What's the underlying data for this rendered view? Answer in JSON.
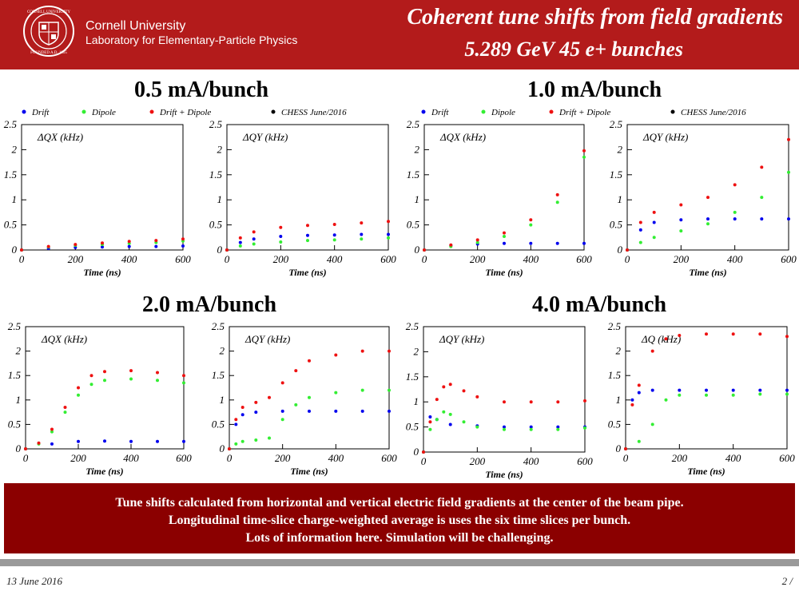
{
  "header": {
    "university": "Cornell University",
    "lab": "Laboratory for Elementary-Particle Physics",
    "title_line1": "Coherent tune shifts from field gradients",
    "title_line2": "5.289 GeV  45 e+ bunches"
  },
  "groups": [
    {
      "title": "0.5 mA/bunch"
    },
    {
      "title": "1.0 mA/bunch"
    },
    {
      "title": "2.0 mA/bunch"
    },
    {
      "title": "4.0 mA/bunch"
    }
  ],
  "legend": [
    {
      "label": "Drift",
      "color": "#0000ee"
    },
    {
      "label": "Dipole",
      "color": "#33ee33"
    },
    {
      "label": "Drift + Dipole",
      "color": "#ee1111"
    },
    {
      "label": "CHESS June/2016",
      "color": "#000000"
    }
  ],
  "colors": {
    "header_bg": "#b31b1b",
    "summary_bg": "#8b0000"
  },
  "chart_data": [
    {
      "type": "scatter",
      "group": "0.5 mA/bunch",
      "ylabel": "ΔQX (kHz)",
      "xlabel": "Time (ns)",
      "xlim": [
        0,
        600
      ],
      "ylim": [
        0,
        2.5
      ],
      "xticks": [
        0,
        200,
        400,
        600
      ],
      "yticks": [
        0,
        0.5,
        1,
        1.5,
        2,
        2.5
      ],
      "grid": false,
      "series": [
        {
          "name": "Drift",
          "x": [
            0,
            100,
            200,
            300,
            400,
            500,
            600
          ],
          "values": [
            0,
            0.03,
            0.05,
            0.06,
            0.07,
            0.07,
            0.08
          ]
        },
        {
          "name": "Dipole",
          "x": [
            0,
            100,
            200,
            300,
            400,
            500,
            600
          ],
          "values": [
            0,
            0.06,
            0.09,
            0.11,
            0.13,
            0.15,
            0.18
          ]
        },
        {
          "name": "Drift + Dipole",
          "x": [
            0,
            100,
            200,
            300,
            400,
            500,
            600
          ],
          "values": [
            0,
            0.07,
            0.11,
            0.14,
            0.17,
            0.19,
            0.22
          ]
        }
      ]
    },
    {
      "type": "scatter",
      "group": "0.5 mA/bunch",
      "ylabel": "ΔQY (kHz)",
      "xlabel": "Time (ns)",
      "xlim": [
        0,
        600
      ],
      "ylim": [
        0,
        2.5
      ],
      "xticks": [
        0,
        200,
        400,
        600
      ],
      "yticks": [
        0,
        0.5,
        1,
        1.5,
        2,
        2.5
      ],
      "grid": false,
      "series": [
        {
          "name": "Drift",
          "x": [
            0,
            50,
            100,
            200,
            300,
            400,
            500,
            600
          ],
          "values": [
            0,
            0.15,
            0.22,
            0.27,
            0.29,
            0.3,
            0.31,
            0.31
          ]
        },
        {
          "name": "Dipole",
          "x": [
            0,
            50,
            100,
            200,
            300,
            400,
            500,
            600
          ],
          "values": [
            0,
            0.08,
            0.12,
            0.16,
            0.19,
            0.2,
            0.22,
            0.24
          ]
        },
        {
          "name": "Drift + Dipole",
          "x": [
            0,
            50,
            100,
            200,
            300,
            400,
            500,
            600
          ],
          "values": [
            0,
            0.24,
            0.36,
            0.45,
            0.49,
            0.51,
            0.54,
            0.57
          ]
        }
      ]
    },
    {
      "type": "scatter",
      "group": "1.0 mA/bunch",
      "ylabel": "ΔQX (kHz)",
      "xlabel": "Time (ns)",
      "xlim": [
        0,
        600
      ],
      "ylim": [
        0,
        2.5
      ],
      "xticks": [
        0,
        200,
        400,
        600
      ],
      "yticks": [
        0,
        0.5,
        1,
        1.5,
        2,
        2.5
      ],
      "grid": false,
      "series": [
        {
          "name": "Drift",
          "x": [
            0,
            100,
            200,
            300,
            400,
            500,
            600
          ],
          "values": [
            0,
            0.09,
            0.12,
            0.13,
            0.13,
            0.13,
            0.13
          ]
        },
        {
          "name": "Dipole",
          "x": [
            0,
            100,
            200,
            300,
            400,
            500,
            600
          ],
          "values": [
            0,
            0.07,
            0.15,
            0.27,
            0.5,
            0.95,
            1.85
          ]
        },
        {
          "name": "Drift + Dipole",
          "x": [
            0,
            100,
            200,
            300,
            400,
            500,
            600
          ],
          "values": [
            0,
            0.1,
            0.2,
            0.34,
            0.6,
            1.1,
            1.98
          ]
        }
      ]
    },
    {
      "type": "scatter",
      "group": "1.0 mA/bunch",
      "ylabel": "ΔQY (kHz)",
      "xlabel": "Time (ns)",
      "xlim": [
        0,
        600
      ],
      "ylim": [
        0,
        2.5
      ],
      "xticks": [
        0,
        200,
        400,
        600
      ],
      "yticks": [
        0,
        0.5,
        1,
        1.5,
        2,
        2.5
      ],
      "grid": false,
      "series": [
        {
          "name": "Drift",
          "x": [
            0,
            50,
            100,
            200,
            300,
            400,
            500,
            600
          ],
          "values": [
            0,
            0.4,
            0.55,
            0.6,
            0.62,
            0.62,
            0.62,
            0.62
          ]
        },
        {
          "name": "Dipole",
          "x": [
            0,
            50,
            100,
            200,
            300,
            400,
            500,
            600
          ],
          "values": [
            0,
            0.15,
            0.25,
            0.38,
            0.52,
            0.75,
            1.05,
            1.55
          ]
        },
        {
          "name": "Drift + Dipole",
          "x": [
            0,
            50,
            100,
            200,
            300,
            400,
            500,
            600
          ],
          "values": [
            0,
            0.55,
            0.75,
            0.9,
            1.05,
            1.3,
            1.65,
            2.2
          ]
        }
      ]
    },
    {
      "type": "scatter",
      "group": "2.0 mA/bunch",
      "ylabel": "ΔQX (kHz)",
      "xlabel": "Time (ns)",
      "xlim": [
        0,
        600
      ],
      "ylim": [
        0,
        2.5
      ],
      "xticks": [
        0,
        200,
        400,
        600
      ],
      "yticks": [
        0,
        0.5,
        1,
        1.5,
        2,
        2.5
      ],
      "grid": false,
      "series": [
        {
          "name": "Drift",
          "x": [
            0,
            100,
            200,
            300,
            400,
            500,
            600
          ],
          "values": [
            0,
            0.1,
            0.15,
            0.16,
            0.15,
            0.15,
            0.15
          ]
        },
        {
          "name": "Dipole",
          "x": [
            0,
            50,
            100,
            150,
            200,
            250,
            300,
            400,
            500,
            600
          ],
          "values": [
            0,
            0.1,
            0.35,
            0.75,
            1.1,
            1.32,
            1.4,
            1.43,
            1.4,
            1.35
          ]
        },
        {
          "name": "Drift + Dipole",
          "x": [
            0,
            50,
            100,
            150,
            200,
            250,
            300,
            400,
            500,
            600
          ],
          "values": [
            0,
            0.12,
            0.4,
            0.85,
            1.25,
            1.5,
            1.58,
            1.6,
            1.56,
            1.5
          ]
        }
      ]
    },
    {
      "type": "scatter",
      "group": "2.0 mA/bunch",
      "ylabel": "ΔQY (kHz)",
      "xlabel": "Time (ns)",
      "xlim": [
        0,
        600
      ],
      "ylim": [
        0,
        2.5
      ],
      "xticks": [
        0,
        200,
        400,
        600
      ],
      "yticks": [
        0,
        0.5,
        1,
        1.5,
        2,
        2.5
      ],
      "grid": false,
      "series": [
        {
          "name": "Drift",
          "x": [
            0,
            25,
            50,
            100,
            200,
            300,
            400,
            500,
            600
          ],
          "values": [
            0,
            0.5,
            0.7,
            0.75,
            0.77,
            0.77,
            0.77,
            0.77,
            0.77
          ]
        },
        {
          "name": "Dipole",
          "x": [
            0,
            25,
            50,
            100,
            150,
            200,
            250,
            300,
            400,
            500,
            600
          ],
          "values": [
            0,
            0.1,
            0.15,
            0.18,
            0.22,
            0.6,
            0.9,
            1.05,
            1.15,
            1.2,
            1.2
          ]
        },
        {
          "name": "Drift + Dipole",
          "x": [
            0,
            25,
            50,
            100,
            150,
            200,
            250,
            300,
            400,
            500,
            600
          ],
          "values": [
            0,
            0.6,
            0.85,
            0.95,
            1.05,
            1.35,
            1.6,
            1.8,
            1.92,
            2.0,
            2.0
          ]
        }
      ]
    },
    {
      "type": "scatter",
      "group": "4.0 mA/bunch",
      "ylabel": "ΔQY (kHz)",
      "xlabel": "Time (ns)",
      "xlim": [
        0,
        600
      ],
      "ylim": [
        0,
        2.5
      ],
      "xticks": [
        0,
        200,
        400,
        600
      ],
      "yticks": [
        0,
        0.5,
        1,
        1.5,
        2,
        2.5
      ],
      "grid": false,
      "series": [
        {
          "name": "Drift",
          "x": [
            0,
            25,
            50,
            100,
            200,
            300,
            400,
            500,
            600
          ],
          "values": [
            0,
            0.7,
            0.65,
            0.55,
            0.52,
            0.5,
            0.5,
            0.5,
            0.5
          ]
        },
        {
          "name": "Dipole",
          "x": [
            0,
            25,
            50,
            75,
            100,
            150,
            200,
            300,
            400,
            500,
            600
          ],
          "values": [
            0,
            0.45,
            0.65,
            0.8,
            0.75,
            0.6,
            0.5,
            0.45,
            0.45,
            0.45,
            0.48
          ]
        },
        {
          "name": "Drift + Dipole",
          "x": [
            0,
            25,
            50,
            75,
            100,
            150,
            200,
            300,
            400,
            500,
            600
          ],
          "values": [
            0,
            0.6,
            1.05,
            1.3,
            1.35,
            1.22,
            1.1,
            1.0,
            1.0,
            1.0,
            1.02
          ]
        }
      ]
    },
    {
      "type": "scatter",
      "group": "4.0 mA/bunch",
      "ylabel": "ΔQ (kHz)",
      "xlabel": "Time (ns)",
      "xlim": [
        0,
        600
      ],
      "ylim": [
        0,
        2.5
      ],
      "xticks": [
        0,
        200,
        400,
        600
      ],
      "yticks": [
        0,
        0.5,
        1,
        1.5,
        2,
        2.5
      ],
      "grid": false,
      "series": [
        {
          "name": "Drift",
          "x": [
            0,
            25,
            50,
            100,
            200,
            300,
            400,
            500,
            600
          ],
          "values": [
            0,
            1.0,
            1.15,
            1.2,
            1.2,
            1.2,
            1.2,
            1.2,
            1.2
          ]
        },
        {
          "name": "Dipole",
          "x": [
            0,
            50,
            100,
            150,
            200,
            300,
            400,
            500,
            600
          ],
          "values": [
            0,
            0.15,
            0.5,
            1.0,
            1.1,
            1.1,
            1.1,
            1.12,
            1.12
          ]
        },
        {
          "name": "Drift + Dipole",
          "x": [
            0,
            25,
            50,
            100,
            150,
            200,
            300,
            400,
            500,
            600
          ],
          "values": [
            0,
            0.9,
            1.3,
            2.0,
            2.25,
            2.32,
            2.35,
            2.35,
            2.35,
            2.3
          ]
        }
      ]
    }
  ],
  "summary": [
    "Tune shifts calculated from horizontal and vertical electric field gradients at the center of the beam pipe.",
    "Longitudinal time-slice charge-weighted average is uses the six time slices per bunch.",
    "Lots of information here. Simulation will be challenging."
  ],
  "footer": {
    "date": "13 June 2016",
    "page": "2 /"
  }
}
